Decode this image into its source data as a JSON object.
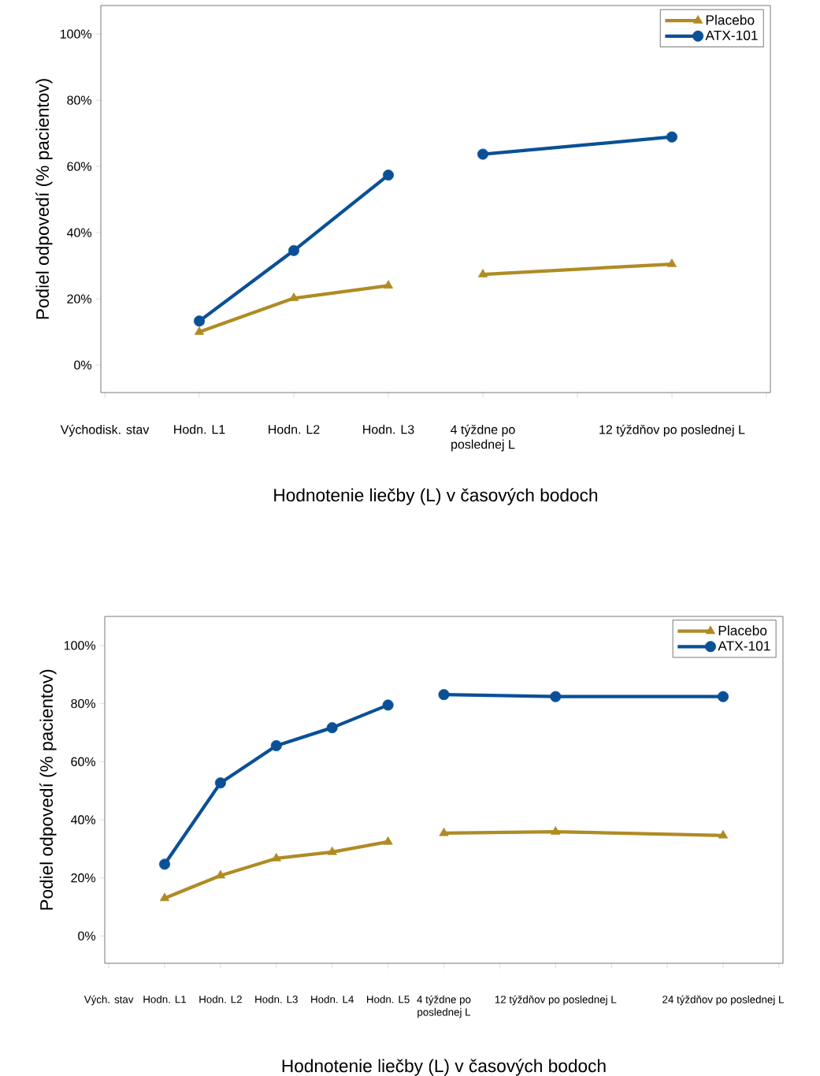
{
  "chart_data": [
    {
      "type": "line",
      "xlabel": "Hodnotenie liečby (L) v časových bodoch",
      "ylabel": "Podiel odpovedí (% pacientov)",
      "categories": [
        "Východisk. stav",
        "Hodn. L1",
        "Hodn. L2",
        "Hodn. L3",
        "4 týždne po poslednej L",
        null,
        "12 týždňov po poslednej L",
        null
      ],
      "ylim": [
        -8.3,
        108.6
      ],
      "yticks": [
        {
          "value": 0,
          "label": "0%"
        },
        {
          "value": 20,
          "label": "20%"
        },
        {
          "value": 40,
          "label": "40%"
        },
        {
          "value": 60,
          "label": "60%"
        },
        {
          "value": 80,
          "label": "80%"
        },
        {
          "value": 100,
          "label": "100%"
        }
      ],
      "legend": "top right",
      "series": [
        {
          "name": "Placebo",
          "color": "#b08b24",
          "marker": "triangle",
          "values": [
            null,
            10.0,
            20.2,
            24.0,
            null,
            null,
            null,
            null
          ]
        },
        {
          "name": "ATX-101",
          "color": "#0a5096",
          "marker": "circle",
          "values": [
            null,
            13.3,
            34.6,
            57.4,
            null,
            null,
            null,
            null
          ]
        },
        {
          "color": "#b08b24",
          "marker": "triangle",
          "values": [
            null,
            null,
            null,
            null,
            27.4,
            null,
            30.5,
            null
          ]
        },
        {
          "color": "#0a5096",
          "marker": "circle",
          "values": [
            null,
            null,
            null,
            null,
            63.7,
            null,
            68.9,
            null
          ]
        }
      ]
    },
    {
      "type": "line",
      "xlabel": "Hodnotenie liečby (L) v časových bodoch",
      "ylabel": "Podiel odpovedí (% pacientov)",
      "categories": [
        "Vých. stav",
        "Hodn. L1",
        "Hodn. L2",
        "Hodn. L3",
        "Hodn. L4",
        "Hodn. L5",
        "4 týždne po poslednej L",
        null,
        "12 týždňov po poslednej L",
        null,
        null,
        "24  týždňov po poslednej L",
        null
      ],
      "ylim": [
        -9.4,
        110.0
      ],
      "yticks": [
        {
          "value": 0,
          "label": "0%"
        },
        {
          "value": 20,
          "label": "20%"
        },
        {
          "value": 40,
          "label": "40%"
        },
        {
          "value": 60,
          "label": "60%"
        },
        {
          "value": 80,
          "label": "80%"
        },
        {
          "value": 100,
          "label": "100%"
        }
      ],
      "legend": "top right",
      "series": [
        {
          "name": "Placebo",
          "color": "#b08b24",
          "marker": "triangle",
          "values": [
            null,
            13.0,
            20.8,
            26.7,
            28.9,
            32.4,
            null,
            null,
            null,
            null,
            null,
            null,
            null
          ]
        },
        {
          "name": "ATX-101",
          "color": "#0a5096",
          "marker": "circle",
          "values": [
            null,
            24.7,
            52.7,
            65.5,
            71.7,
            79.5,
            null,
            null,
            null,
            null,
            null,
            null,
            null
          ]
        },
        {
          "color": "#b08b24",
          "marker": "triangle",
          "values": [
            null,
            null,
            null,
            null,
            null,
            null,
            35.4,
            null,
            35.9,
            null,
            null,
            34.6,
            null
          ]
        },
        {
          "color": "#0a5096",
          "marker": "circle",
          "values": [
            null,
            null,
            null,
            null,
            null,
            null,
            83.1,
            null,
            82.4,
            null,
            null,
            82.4,
            null
          ]
        }
      ]
    }
  ]
}
